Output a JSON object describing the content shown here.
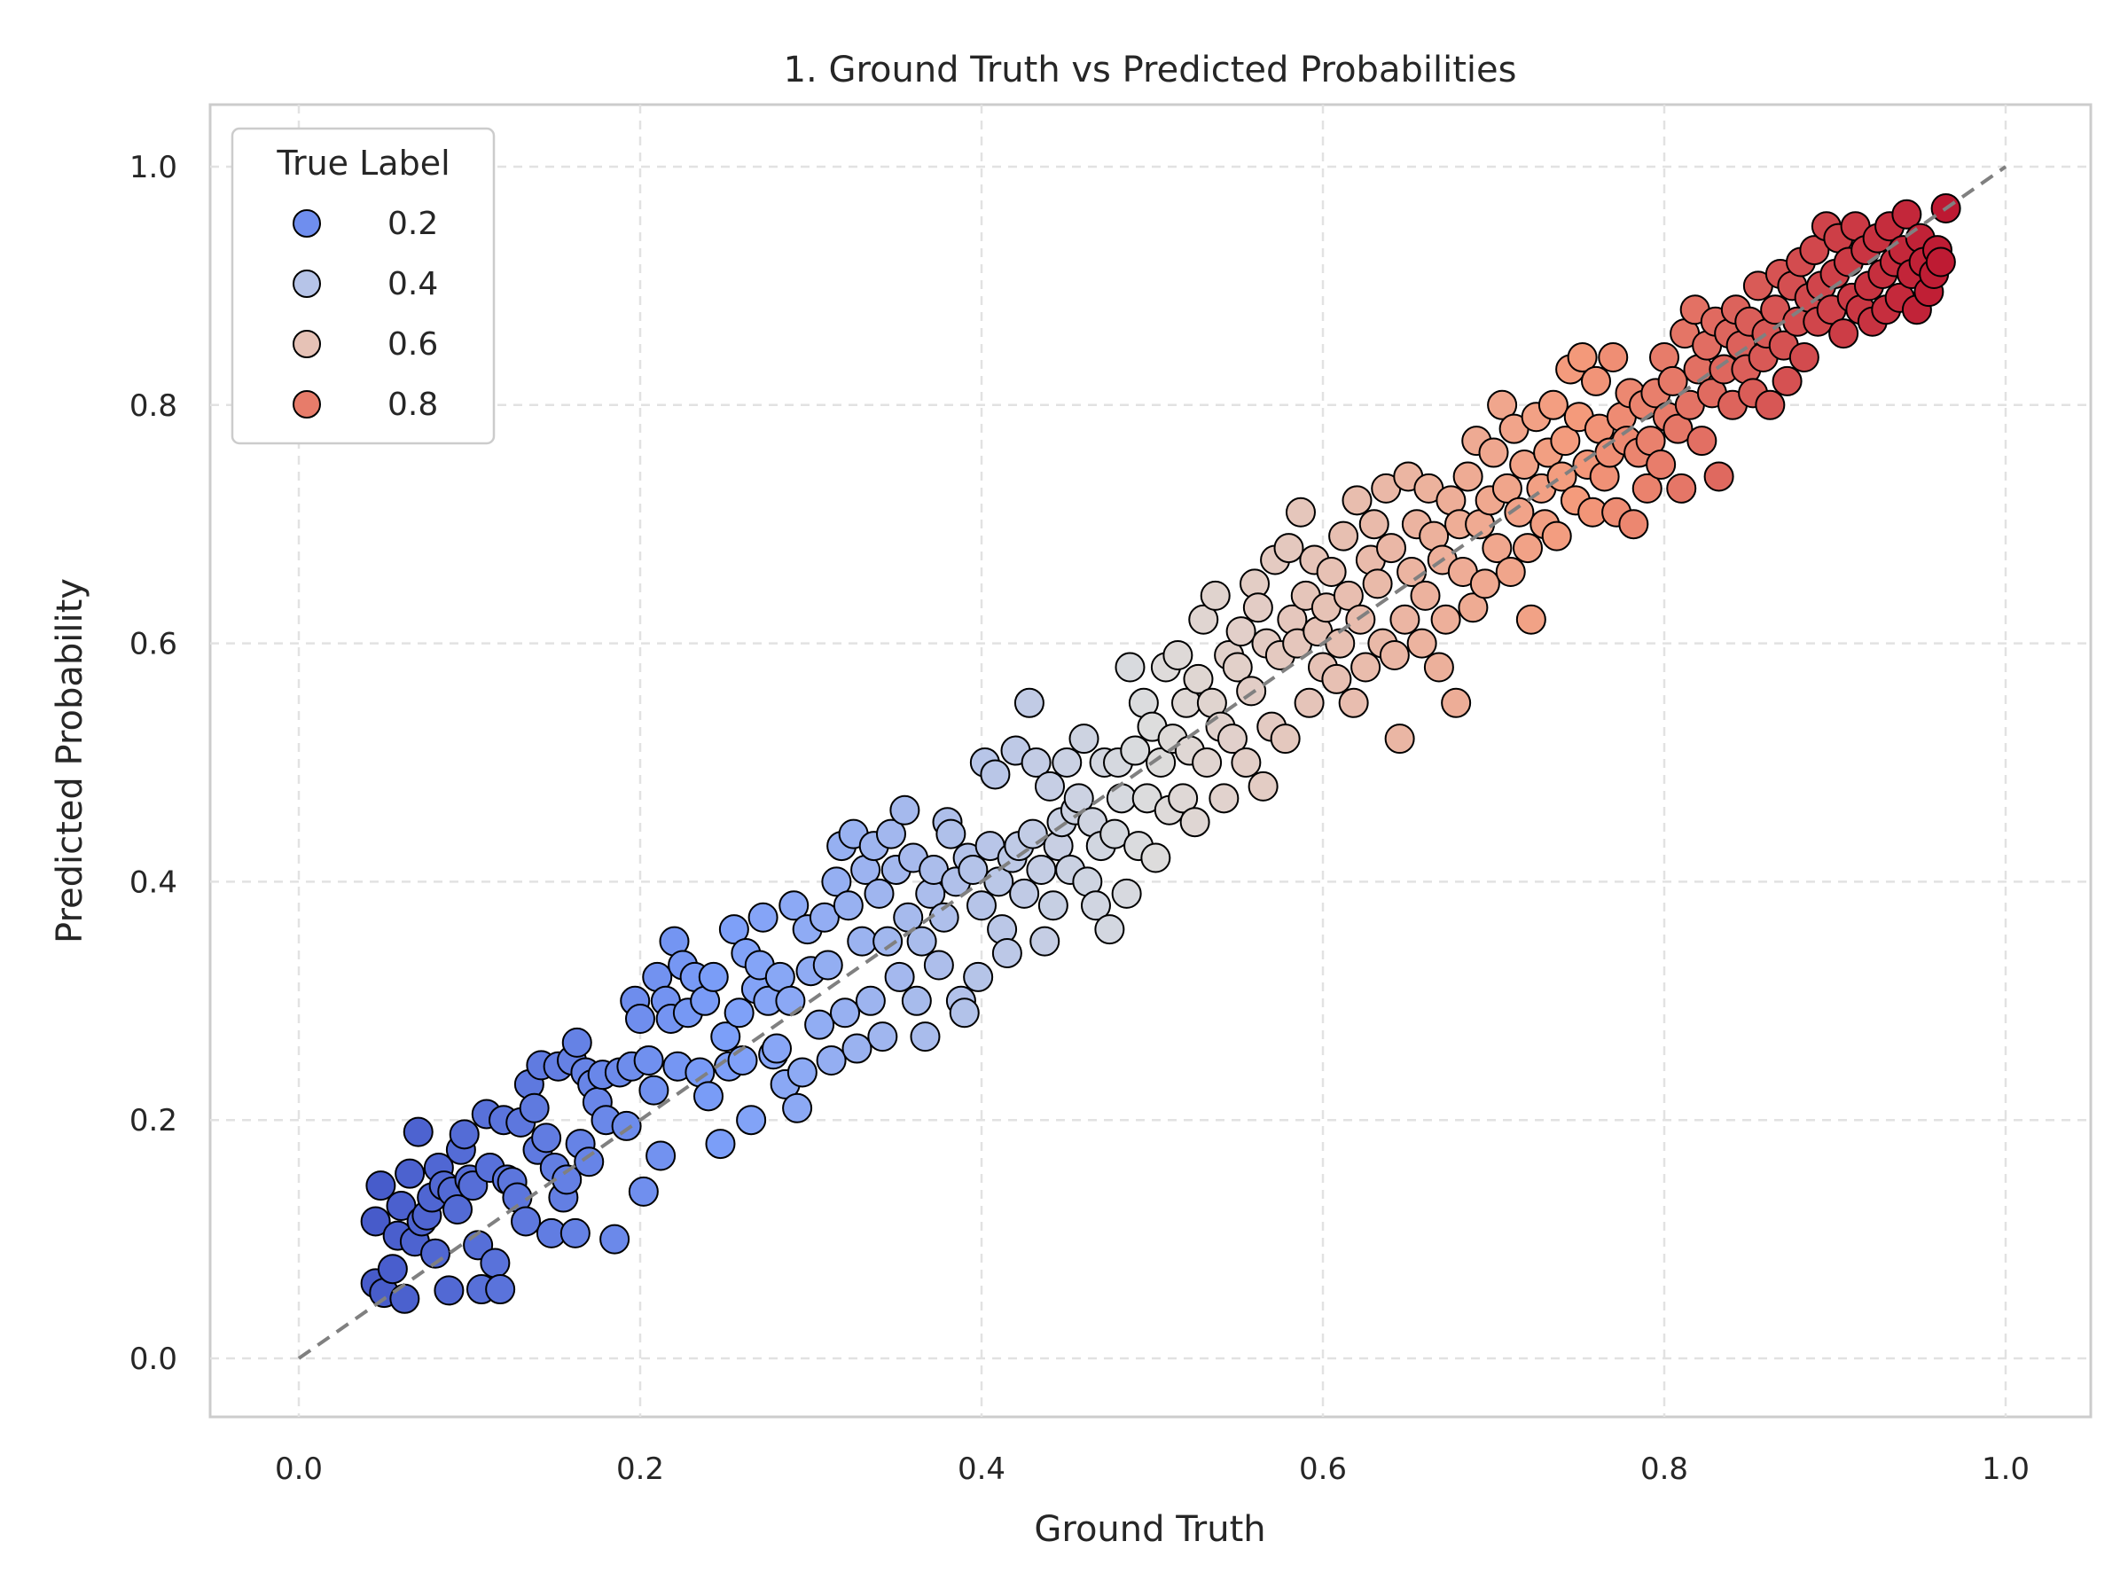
{
  "chart_data": {
    "type": "scatter",
    "title": "1. Ground Truth vs Predicted Probabilities",
    "xlabel": "Ground Truth",
    "ylabel": "Predicted Probability",
    "xlim": [
      -0.05,
      1.05
    ],
    "ylim": [
      -0.05,
      1.05
    ],
    "xticks": [
      "0.0",
      "0.2",
      "0.4",
      "0.6",
      "0.8",
      "1.0"
    ],
    "yticks": [
      "0.0",
      "0.2",
      "0.4",
      "0.6",
      "0.8",
      "1.0"
    ],
    "grid": true,
    "legend": {
      "title": "True Label",
      "placement": "top-left",
      "entries": [
        {
          "label": "0.2",
          "value": 0.2
        },
        {
          "label": "0.4",
          "value": 0.4
        },
        {
          "label": "0.6",
          "value": 0.6
        },
        {
          "label": "0.8",
          "value": 0.8
        }
      ]
    },
    "colormap": "coolwarm",
    "reference_line": {
      "x": [
        0,
        1
      ],
      "y": [
        0,
        1
      ],
      "style": "dashed",
      "color": "#808080"
    },
    "points": [
      [
        0.045,
        0.063
      ],
      [
        0.045,
        0.115
      ],
      [
        0.048,
        0.145
      ],
      [
        0.05,
        0.055
      ],
      [
        0.055,
        0.075
      ],
      [
        0.058,
        0.103
      ],
      [
        0.06,
        0.128
      ],
      [
        0.062,
        0.05
      ],
      [
        0.065,
        0.155
      ],
      [
        0.068,
        0.098
      ],
      [
        0.07,
        0.19
      ],
      [
        0.072,
        0.115
      ],
      [
        0.075,
        0.12
      ],
      [
        0.078,
        0.135
      ],
      [
        0.08,
        0.088
      ],
      [
        0.082,
        0.16
      ],
      [
        0.085,
        0.145
      ],
      [
        0.088,
        0.057
      ],
      [
        0.09,
        0.14
      ],
      [
        0.093,
        0.125
      ],
      [
        0.095,
        0.175
      ],
      [
        0.097,
        0.188
      ],
      [
        0.1,
        0.15
      ],
      [
        0.102,
        0.145
      ],
      [
        0.105,
        0.095
      ],
      [
        0.107,
        0.058
      ],
      [
        0.11,
        0.205
      ],
      [
        0.112,
        0.16
      ],
      [
        0.115,
        0.08
      ],
      [
        0.118,
        0.058
      ],
      [
        0.12,
        0.2
      ],
      [
        0.122,
        0.15
      ],
      [
        0.125,
        0.148
      ],
      [
        0.128,
        0.135
      ],
      [
        0.13,
        0.198
      ],
      [
        0.133,
        0.115
      ],
      [
        0.135,
        0.23
      ],
      [
        0.138,
        0.21
      ],
      [
        0.14,
        0.175
      ],
      [
        0.142,
        0.246
      ],
      [
        0.145,
        0.185
      ],
      [
        0.148,
        0.105
      ],
      [
        0.15,
        0.16
      ],
      [
        0.152,
        0.245
      ],
      [
        0.155,
        0.135
      ],
      [
        0.157,
        0.15
      ],
      [
        0.16,
        0.25
      ],
      [
        0.162,
        0.105
      ],
      [
        0.163,
        0.265
      ],
      [
        0.165,
        0.18
      ],
      [
        0.168,
        0.24
      ],
      [
        0.17,
        0.165
      ],
      [
        0.172,
        0.23
      ],
      [
        0.175,
        0.215
      ],
      [
        0.178,
        0.238
      ],
      [
        0.18,
        0.2
      ],
      [
        0.185,
        0.1
      ],
      [
        0.188,
        0.24
      ],
      [
        0.192,
        0.195
      ],
      [
        0.195,
        0.245
      ],
      [
        0.197,
        0.3
      ],
      [
        0.2,
        0.285
      ],
      [
        0.202,
        0.14
      ],
      [
        0.205,
        0.25
      ],
      [
        0.208,
        0.225
      ],
      [
        0.21,
        0.32
      ],
      [
        0.212,
        0.17
      ],
      [
        0.215,
        0.3
      ],
      [
        0.218,
        0.285
      ],
      [
        0.22,
        0.35
      ],
      [
        0.222,
        0.245
      ],
      [
        0.225,
        0.33
      ],
      [
        0.228,
        0.29
      ],
      [
        0.232,
        0.32
      ],
      [
        0.235,
        0.24
      ],
      [
        0.238,
        0.3
      ],
      [
        0.24,
        0.22
      ],
      [
        0.243,
        0.32
      ],
      [
        0.247,
        0.18
      ],
      [
        0.25,
        0.27
      ],
      [
        0.252,
        0.245
      ],
      [
        0.255,
        0.36
      ],
      [
        0.258,
        0.29
      ],
      [
        0.26,
        0.25
      ],
      [
        0.262,
        0.34
      ],
      [
        0.265,
        0.2
      ],
      [
        0.268,
        0.31
      ],
      [
        0.27,
        0.33
      ],
      [
        0.272,
        0.37
      ],
      [
        0.275,
        0.3
      ],
      [
        0.278,
        0.255
      ],
      [
        0.28,
        0.26
      ],
      [
        0.282,
        0.32
      ],
      [
        0.285,
        0.23
      ],
      [
        0.288,
        0.3
      ],
      [
        0.29,
        0.38
      ],
      [
        0.292,
        0.21
      ],
      [
        0.295,
        0.24
      ],
      [
        0.298,
        0.36
      ],
      [
        0.3,
        0.325
      ],
      [
        0.305,
        0.28
      ],
      [
        0.308,
        0.37
      ],
      [
        0.31,
        0.33
      ],
      [
        0.312,
        0.25
      ],
      [
        0.315,
        0.4
      ],
      [
        0.318,
        0.43
      ],
      [
        0.32,
        0.29
      ],
      [
        0.322,
        0.38
      ],
      [
        0.325,
        0.44
      ],
      [
        0.327,
        0.26
      ],
      [
        0.33,
        0.35
      ],
      [
        0.332,
        0.41
      ],
      [
        0.335,
        0.3
      ],
      [
        0.337,
        0.43
      ],
      [
        0.34,
        0.39
      ],
      [
        0.342,
        0.27
      ],
      [
        0.345,
        0.35
      ],
      [
        0.347,
        0.44
      ],
      [
        0.35,
        0.41
      ],
      [
        0.352,
        0.32
      ],
      [
        0.355,
        0.46
      ],
      [
        0.357,
        0.37
      ],
      [
        0.36,
        0.42
      ],
      [
        0.362,
        0.3
      ],
      [
        0.365,
        0.35
      ],
      [
        0.367,
        0.27
      ],
      [
        0.37,
        0.39
      ],
      [
        0.372,
        0.41
      ],
      [
        0.375,
        0.33
      ],
      [
        0.378,
        0.37
      ],
      [
        0.38,
        0.45
      ],
      [
        0.382,
        0.44
      ],
      [
        0.385,
        0.4
      ],
      [
        0.388,
        0.3
      ],
      [
        0.39,
        0.29
      ],
      [
        0.392,
        0.42
      ],
      [
        0.395,
        0.41
      ],
      [
        0.398,
        0.32
      ],
      [
        0.4,
        0.38
      ],
      [
        0.402,
        0.5
      ],
      [
        0.405,
        0.43
      ],
      [
        0.408,
        0.49
      ],
      [
        0.41,
        0.4
      ],
      [
        0.412,
        0.36
      ],
      [
        0.415,
        0.34
      ],
      [
        0.418,
        0.42
      ],
      [
        0.42,
        0.51
      ],
      [
        0.422,
        0.43
      ],
      [
        0.425,
        0.39
      ],
      [
        0.428,
        0.55
      ],
      [
        0.43,
        0.44
      ],
      [
        0.432,
        0.5
      ],
      [
        0.435,
        0.41
      ],
      [
        0.437,
        0.35
      ],
      [
        0.44,
        0.48
      ],
      [
        0.442,
        0.38
      ],
      [
        0.445,
        0.43
      ],
      [
        0.447,
        0.45
      ],
      [
        0.45,
        0.5
      ],
      [
        0.452,
        0.41
      ],
      [
        0.455,
        0.46
      ],
      [
        0.457,
        0.47
      ],
      [
        0.46,
        0.52
      ],
      [
        0.462,
        0.4
      ],
      [
        0.465,
        0.45
      ],
      [
        0.467,
        0.38
      ],
      [
        0.47,
        0.43
      ],
      [
        0.472,
        0.5
      ],
      [
        0.475,
        0.36
      ],
      [
        0.478,
        0.44
      ],
      [
        0.48,
        0.5
      ],
      [
        0.482,
        0.47
      ],
      [
        0.485,
        0.39
      ],
      [
        0.487,
        0.58
      ],
      [
        0.49,
        0.51
      ],
      [
        0.492,
        0.43
      ],
      [
        0.495,
        0.55
      ],
      [
        0.497,
        0.47
      ],
      [
        0.5,
        0.53
      ],
      [
        0.502,
        0.42
      ],
      [
        0.505,
        0.5
      ],
      [
        0.508,
        0.58
      ],
      [
        0.51,
        0.46
      ],
      [
        0.512,
        0.52
      ],
      [
        0.515,
        0.59
      ],
      [
        0.518,
        0.47
      ],
      [
        0.52,
        0.55
      ],
      [
        0.522,
        0.51
      ],
      [
        0.525,
        0.45
      ],
      [
        0.527,
        0.57
      ],
      [
        0.53,
        0.62
      ],
      [
        0.532,
        0.5
      ],
      [
        0.535,
        0.55
      ],
      [
        0.537,
        0.64
      ],
      [
        0.54,
        0.53
      ],
      [
        0.542,
        0.47
      ],
      [
        0.545,
        0.59
      ],
      [
        0.547,
        0.52
      ],
      [
        0.55,
        0.58
      ],
      [
        0.552,
        0.61
      ],
      [
        0.555,
        0.5
      ],
      [
        0.558,
        0.56
      ],
      [
        0.56,
        0.65
      ],
      [
        0.562,
        0.63
      ],
      [
        0.565,
        0.48
      ],
      [
        0.567,
        0.6
      ],
      [
        0.57,
        0.53
      ],
      [
        0.572,
        0.67
      ],
      [
        0.575,
        0.59
      ],
      [
        0.578,
        0.52
      ],
      [
        0.58,
        0.68
      ],
      [
        0.582,
        0.62
      ],
      [
        0.585,
        0.6
      ],
      [
        0.587,
        0.71
      ],
      [
        0.59,
        0.64
      ],
      [
        0.592,
        0.55
      ],
      [
        0.595,
        0.67
      ],
      [
        0.597,
        0.61
      ],
      [
        0.6,
        0.58
      ],
      [
        0.602,
        0.63
      ],
      [
        0.605,
        0.66
      ],
      [
        0.608,
        0.57
      ],
      [
        0.61,
        0.6
      ],
      [
        0.612,
        0.69
      ],
      [
        0.615,
        0.64
      ],
      [
        0.618,
        0.55
      ],
      [
        0.62,
        0.72
      ],
      [
        0.622,
        0.62
      ],
      [
        0.625,
        0.58
      ],
      [
        0.628,
        0.67
      ],
      [
        0.63,
        0.7
      ],
      [
        0.632,
        0.65
      ],
      [
        0.635,
        0.6
      ],
      [
        0.637,
        0.73
      ],
      [
        0.64,
        0.68
      ],
      [
        0.642,
        0.59
      ],
      [
        0.645,
        0.52
      ],
      [
        0.648,
        0.62
      ],
      [
        0.65,
        0.74
      ],
      [
        0.652,
        0.66
      ],
      [
        0.655,
        0.7
      ],
      [
        0.658,
        0.6
      ],
      [
        0.66,
        0.64
      ],
      [
        0.662,
        0.73
      ],
      [
        0.665,
        0.69
      ],
      [
        0.668,
        0.58
      ],
      [
        0.67,
        0.67
      ],
      [
        0.672,
        0.62
      ],
      [
        0.675,
        0.72
      ],
      [
        0.678,
        0.55
      ],
      [
        0.68,
        0.7
      ],
      [
        0.682,
        0.66
      ],
      [
        0.685,
        0.74
      ],
      [
        0.688,
        0.63
      ],
      [
        0.69,
        0.77
      ],
      [
        0.692,
        0.7
      ],
      [
        0.695,
        0.65
      ],
      [
        0.698,
        0.72
      ],
      [
        0.7,
        0.76
      ],
      [
        0.702,
        0.68
      ],
      [
        0.705,
        0.8
      ],
      [
        0.708,
        0.73
      ],
      [
        0.71,
        0.66
      ],
      [
        0.712,
        0.78
      ],
      [
        0.715,
        0.71
      ],
      [
        0.718,
        0.75
      ],
      [
        0.72,
        0.68
      ],
      [
        0.722,
        0.62
      ],
      [
        0.725,
        0.79
      ],
      [
        0.728,
        0.73
      ],
      [
        0.73,
        0.7
      ],
      [
        0.732,
        0.76
      ],
      [
        0.735,
        0.8
      ],
      [
        0.737,
        0.69
      ],
      [
        0.74,
        0.74
      ],
      [
        0.742,
        0.77
      ],
      [
        0.745,
        0.83
      ],
      [
        0.748,
        0.72
      ],
      [
        0.75,
        0.79
      ],
      [
        0.752,
        0.84
      ],
      [
        0.755,
        0.75
      ],
      [
        0.758,
        0.71
      ],
      [
        0.76,
        0.82
      ],
      [
        0.762,
        0.78
      ],
      [
        0.765,
        0.74
      ],
      [
        0.768,
        0.76
      ],
      [
        0.77,
        0.84
      ],
      [
        0.772,
        0.71
      ],
      [
        0.775,
        0.79
      ],
      [
        0.778,
        0.77
      ],
      [
        0.78,
        0.81
      ],
      [
        0.782,
        0.7
      ],
      [
        0.785,
        0.76
      ],
      [
        0.788,
        0.8
      ],
      [
        0.79,
        0.73
      ],
      [
        0.792,
        0.77
      ],
      [
        0.795,
        0.81
      ],
      [
        0.798,
        0.75
      ],
      [
        0.8,
        0.84
      ],
      [
        0.802,
        0.79
      ],
      [
        0.805,
        0.82
      ],
      [
        0.808,
        0.78
      ],
      [
        0.81,
        0.73
      ],
      [
        0.812,
        0.86
      ],
      [
        0.815,
        0.8
      ],
      [
        0.818,
        0.88
      ],
      [
        0.82,
        0.83
      ],
      [
        0.822,
        0.77
      ],
      [
        0.825,
        0.85
      ],
      [
        0.828,
        0.81
      ],
      [
        0.83,
        0.87
      ],
      [
        0.832,
        0.74
      ],
      [
        0.835,
        0.83
      ],
      [
        0.838,
        0.86
      ],
      [
        0.84,
        0.8
      ],
      [
        0.842,
        0.88
      ],
      [
        0.845,
        0.85
      ],
      [
        0.848,
        0.83
      ],
      [
        0.85,
        0.87
      ],
      [
        0.852,
        0.81
      ],
      [
        0.855,
        0.9
      ],
      [
        0.858,
        0.84
      ],
      [
        0.86,
        0.86
      ],
      [
        0.862,
        0.8
      ],
      [
        0.865,
        0.88
      ],
      [
        0.868,
        0.91
      ],
      [
        0.87,
        0.85
      ],
      [
        0.872,
        0.82
      ],
      [
        0.875,
        0.9
      ],
      [
        0.878,
        0.87
      ],
      [
        0.88,
        0.92
      ],
      [
        0.882,
        0.84
      ],
      [
        0.885,
        0.89
      ],
      [
        0.888,
        0.93
      ],
      [
        0.89,
        0.87
      ],
      [
        0.892,
        0.9
      ],
      [
        0.895,
        0.95
      ],
      [
        0.898,
        0.88
      ],
      [
        0.9,
        0.91
      ],
      [
        0.902,
        0.94
      ],
      [
        0.905,
        0.86
      ],
      [
        0.908,
        0.92
      ],
      [
        0.91,
        0.89
      ],
      [
        0.912,
        0.95
      ],
      [
        0.915,
        0.88
      ],
      [
        0.918,
        0.93
      ],
      [
        0.92,
        0.9
      ],
      [
        0.922,
        0.87
      ],
      [
        0.925,
        0.94
      ],
      [
        0.928,
        0.91
      ],
      [
        0.93,
        0.88
      ],
      [
        0.932,
        0.95
      ],
      [
        0.935,
        0.92
      ],
      [
        0.938,
        0.89
      ],
      [
        0.94,
        0.93
      ],
      [
        0.942,
        0.96
      ],
      [
        0.945,
        0.91
      ],
      [
        0.948,
        0.88
      ],
      [
        0.95,
        0.94
      ],
      [
        0.952,
        0.92
      ],
      [
        0.955,
        0.895
      ],
      [
        0.958,
        0.91
      ],
      [
        0.96,
        0.93
      ],
      [
        0.962,
        0.92
      ],
      [
        0.965,
        0.965
      ]
    ]
  }
}
